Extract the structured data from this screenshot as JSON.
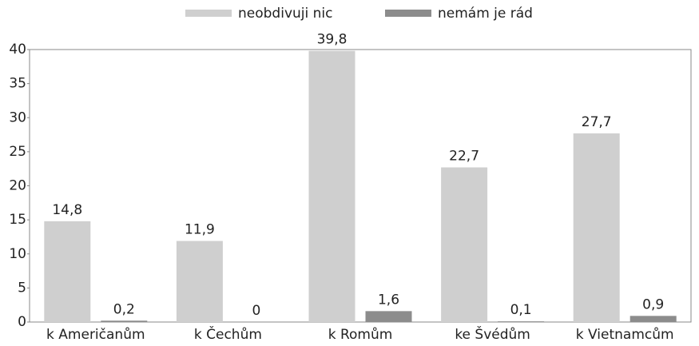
{
  "chart_data": {
    "type": "bar",
    "categories": [
      "k Američanům",
      "k Čechům",
      "k Romům",
      "ke Švédům",
      "k Vietnamcům"
    ],
    "series": [
      {
        "name": "neobdivuji nic",
        "color": "#cfcfcf",
        "values": [
          14.8,
          11.9,
          39.8,
          22.7,
          27.7
        ],
        "value_labels": [
          "14,8",
          "11,9",
          "39,8",
          "22,7",
          "27,7"
        ]
      },
      {
        "name": "nemám je rád",
        "color": "#8c8c8c",
        "values": [
          0.2,
          0,
          1.6,
          0.1,
          0.9
        ],
        "value_labels": [
          "0,2",
          "0",
          "1,6",
          "0,1",
          "0,9"
        ]
      }
    ],
    "ylim": [
      0,
      40
    ],
    "yticks": [
      0,
      5,
      10,
      15,
      20,
      25,
      30,
      35,
      40
    ],
    "legend": "top",
    "grid": false
  }
}
